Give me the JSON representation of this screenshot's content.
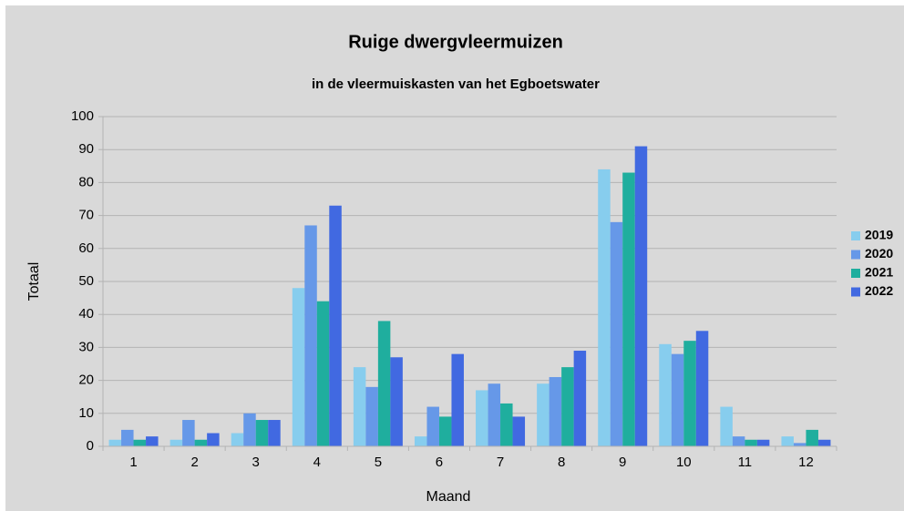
{
  "chart_data": {
    "type": "bar",
    "title": "Ruige dwergvleermuizen",
    "subtitle": "in de vleermuiskasten van het Egboetswater",
    "x_label": "Maand",
    "y_label": "Totaal",
    "categories": [
      "1",
      "2",
      "3",
      "4",
      "5",
      "6",
      "7",
      "8",
      "9",
      "10",
      "11",
      "12"
    ],
    "series": [
      {
        "name": "2019",
        "color": "#87cdee",
        "values": [
          2,
          2,
          4,
          48,
          24,
          3,
          17,
          19,
          84,
          31,
          12,
          3
        ]
      },
      {
        "name": "2020",
        "color": "#6698e8",
        "values": [
          5,
          8,
          10,
          67,
          18,
          12,
          19,
          21,
          68,
          28,
          3,
          1
        ]
      },
      {
        "name": "2021",
        "color": "#1fae9e",
        "values": [
          2,
          2,
          8,
          44,
          38,
          9,
          13,
          24,
          83,
          32,
          2,
          5
        ]
      },
      {
        "name": "2022",
        "color": "#4169e1",
        "values": [
          3,
          4,
          8,
          73,
          27,
          28,
          9,
          29,
          91,
          35,
          2,
          2
        ]
      }
    ],
    "ylim": [
      0,
      100
    ],
    "yticks": [
      0,
      10,
      20,
      30,
      40,
      50,
      60,
      70,
      80,
      90,
      100
    ],
    "grid": true,
    "legend": "right"
  }
}
